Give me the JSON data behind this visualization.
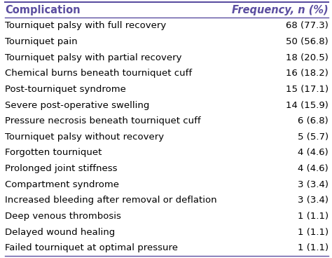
{
  "header_left": "Complication",
  "header_right": "Frequency, n (%)",
  "rows": [
    [
      "Tourniquet palsy with full recovery",
      "68 (77.3)"
    ],
    [
      "Tourniquet pain",
      "50 (56.8)"
    ],
    [
      "Tourniquet palsy with partial recovery",
      "18 (20.5)"
    ],
    [
      "Chemical burns beneath tourniquet cuff",
      "16 (18.2)"
    ],
    [
      "Post-tourniquet syndrome",
      "15 (17.1)"
    ],
    [
      "Severe post-operative swelling",
      "14 (15.9)"
    ],
    [
      "Pressure necrosis beneath tourniquet cuff",
      "6 (6.8)"
    ],
    [
      "Tourniquet palsy without recovery",
      "5 (5.7)"
    ],
    [
      "Forgotten tourniquet",
      "4 (4.6)"
    ],
    [
      "Prolonged joint stiffness",
      "4 (4.6)"
    ],
    [
      "Compartment syndrome",
      "3 (3.4)"
    ],
    [
      "Increased bleeding after removal or deflation",
      "3 (3.4)"
    ],
    [
      "Deep venous thrombosis",
      "1 (1.1)"
    ],
    [
      "Delayed wound healing",
      "1 (1.1)"
    ],
    [
      "Failed tourniquet at optimal pressure",
      "1 (1.1)"
    ]
  ],
  "header_text_color": "#5b4ea0",
  "row_text_color": "#000000",
  "background_color": "#ffffff",
  "header_line_color": "#5b4ea0",
  "header_fontsize": 10.5,
  "row_fontsize": 9.5
}
